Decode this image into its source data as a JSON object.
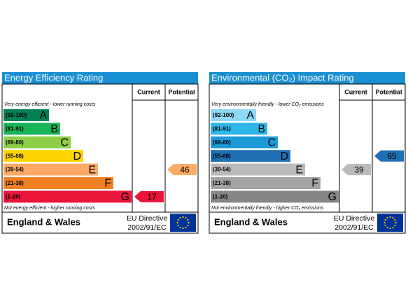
{
  "panels": [
    {
      "title": "Energy Efficiency Rating",
      "headers": [
        "Current",
        "Potential"
      ],
      "top_note": "Very energy efficient - lower running costs",
      "bands": [
        {
          "range": "(92-100)",
          "letter": "A"
        },
        {
          "range": "(81-91)",
          "letter": "B"
        },
        {
          "range": "(69-80)",
          "letter": "C"
        },
        {
          "range": "(55-68)",
          "letter": "D"
        },
        {
          "range": "(39-54)",
          "letter": "E"
        },
        {
          "range": "(21-38)",
          "letter": "F"
        },
        {
          "range": "(1-20)",
          "letter": "G"
        }
      ],
      "colors": [
        "#008054",
        "#19b459",
        "#8dce46",
        "#ffd500",
        "#fcaa65",
        "#ef8023",
        "#e9153b"
      ],
      "bottom_note": "Not energy efficient - higher running costs",
      "current": 17,
      "potential": 46,
      "footer": {
        "region": "England & Wales",
        "directive": "EU Directive",
        "directive_code": "2002/91/EC"
      }
    },
    {
      "title": "Environmental (CO₂) Impact Rating",
      "headers": [
        "Current",
        "Potential"
      ],
      "top_note": "Very environmentally friendly - lower CO₂ emissions",
      "bands": [
        {
          "range": "(92-100)",
          "letter": "A"
        },
        {
          "range": "(81-91)",
          "letter": "B"
        },
        {
          "range": "(69-80)",
          "letter": "C"
        },
        {
          "range": "(55-68)",
          "letter": "D"
        },
        {
          "range": "(39-54)",
          "letter": "E"
        },
        {
          "range": "(21-38)",
          "letter": "F"
        },
        {
          "range": "(1-20)",
          "letter": "G"
        }
      ],
      "colors": [
        "#8ed8f8",
        "#2db6e8",
        "#1a9ad6",
        "#1f6fb4",
        "#bbbbbb",
        "#a3a3a3",
        "#878787"
      ],
      "bottom_note": "Not environmentally friendly - higher CO₂ emissions",
      "current": 39,
      "potential": 65,
      "footer": {
        "region": "England & Wales",
        "directive": "EU Directive",
        "directive_code": "2002/91/EC"
      }
    }
  ]
}
